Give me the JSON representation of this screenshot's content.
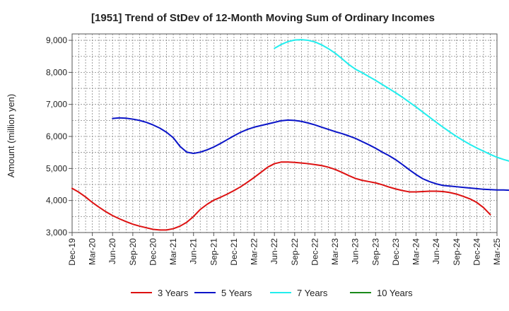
{
  "chart_data": {
    "type": "line",
    "title": "[1951]  Trend of StDev of 12-Month Moving Sum of Ordinary Incomes",
    "xlabel": "",
    "ylabel": "Amount (million yen)",
    "ylim": [
      3000,
      9200
    ],
    "yticks": [
      3000,
      4000,
      5000,
      6000,
      7000,
      8000,
      9000
    ],
    "ytick_labels": [
      "3,000",
      "4,000",
      "5,000",
      "6,000",
      "7,000",
      "8,000",
      "9,000"
    ],
    "x_start": "Dec-19",
    "xtick_labels": [
      "Dec-19",
      "Mar-20",
      "Jun-20",
      "Sep-20",
      "Dec-20",
      "Mar-21",
      "Jun-21",
      "Sep-21",
      "Dec-21",
      "Mar-22",
      "Jun-22",
      "Sep-22",
      "Dec-22",
      "Mar-23",
      "Jun-23",
      "Sep-23",
      "Dec-23",
      "Mar-24",
      "Jun-24",
      "Sep-24",
      "Dec-24",
      "Mar-25"
    ],
    "grid": true,
    "legend_position": "bottom",
    "series": [
      {
        "name": "3 Years",
        "color": "#dd1111",
        "start_index": 0,
        "values": [
          4380,
          4260,
          4110,
          3940,
          3790,
          3650,
          3530,
          3430,
          3340,
          3260,
          3200,
          3150,
          3100,
          3080,
          3080,
          3120,
          3200,
          3320,
          3500,
          3720,
          3880,
          4010,
          4100,
          4200,
          4310,
          4430,
          4570,
          4720,
          4880,
          5040,
          5150,
          5200,
          5200,
          5190,
          5170,
          5150,
          5120,
          5090,
          5040,
          4970,
          4880,
          4780,
          4690,
          4630,
          4590,
          4550,
          4490,
          4420,
          4360,
          4310,
          4270,
          4270,
          4280,
          4290,
          4290,
          4280,
          4250,
          4200,
          4130,
          4050,
          3940,
          3780,
          3560
        ]
      },
      {
        "name": "5 Years",
        "color": "#0a14c8",
        "start_index": 6,
        "values": [
          6560,
          6580,
          6570,
          6540,
          6500,
          6440,
          6360,
          6260,
          6130,
          5960,
          5690,
          5510,
          5470,
          5510,
          5580,
          5670,
          5780,
          5900,
          6020,
          6130,
          6220,
          6290,
          6340,
          6390,
          6440,
          6490,
          6510,
          6500,
          6470,
          6420,
          6360,
          6290,
          6220,
          6150,
          6090,
          6020,
          5940,
          5840,
          5740,
          5630,
          5510,
          5400,
          5270,
          5120,
          4960,
          4810,
          4680,
          4590,
          4520,
          4470,
          4450,
          4430,
          4410,
          4390,
          4370,
          4350,
          4340,
          4330,
          4330,
          4320,
          4310,
          4290
        ]
      },
      {
        "name": "7 Years",
        "color": "#22eeee",
        "start_index": 30,
        "values": [
          8750,
          8870,
          8960,
          9010,
          9020,
          9000,
          8950,
          8860,
          8740,
          8600,
          8430,
          8250,
          8100,
          7990,
          7870,
          7750,
          7620,
          7490,
          7360,
          7220,
          7070,
          6920,
          6760,
          6600,
          6440,
          6290,
          6140,
          6000,
          5870,
          5750,
          5640,
          5540,
          5440,
          5350,
          5280,
          5220,
          5170
        ]
      },
      {
        "name": "10 Years",
        "color": "#1a8a1a",
        "start_index": 0,
        "values": []
      }
    ]
  }
}
